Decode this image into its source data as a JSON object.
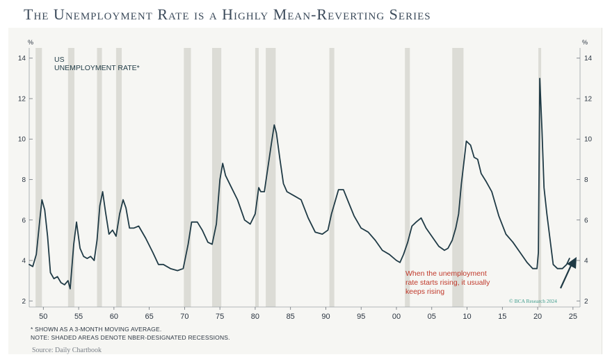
{
  "page_title": "The Unemployment Rate is a Highly Mean-Reverting Series",
  "source": "Source: Daily Chartbook",
  "footnotes": {
    "line1": "* SHOWN AS A 3-MONTH MOVING AVERAGE.",
    "line2": "NOTE: SHADED AREAS DENOTE NBER-DESIGNATED RECESSIONS."
  },
  "colors": {
    "line": "#1f3a45",
    "recession_shade": "#dcdcd6",
    "annotation": "#c0392b",
    "watermark": "#3a9a8a",
    "arrow": "#1f3a45"
  },
  "icons": {
    "arrow": "arrow-up-right-icon"
  },
  "chart_data": {
    "type": "line",
    "title": "US",
    "subtitle": "UNEMPLOYMENT RATE*",
    "y_unit_left": "%",
    "y_unit_right": "%",
    "ylim": [
      1.7,
      14.3
    ],
    "xlim": [
      1948.0,
      2026.0
    ],
    "y_ticks": [
      2,
      4,
      6,
      8,
      10,
      12,
      14
    ],
    "x_ticks": [
      {
        "value": 1950,
        "label": "50"
      },
      {
        "value": 1955,
        "label": "55"
      },
      {
        "value": 1960,
        "label": "60"
      },
      {
        "value": 1965,
        "label": "65"
      },
      {
        "value": 1970,
        "label": "70"
      },
      {
        "value": 1975,
        "label": "75"
      },
      {
        "value": 1980,
        "label": "80"
      },
      {
        "value": 1985,
        "label": "85"
      },
      {
        "value": 1990,
        "label": "90"
      },
      {
        "value": 1995,
        "label": "95"
      },
      {
        "value": 2000,
        "label": "00"
      },
      {
        "value": 2005,
        "label": "05"
      },
      {
        "value": 2010,
        "label": "10"
      },
      {
        "value": 2015,
        "label": "15"
      },
      {
        "value": 2020,
        "label": "20"
      },
      {
        "value": 2025,
        "label": "25"
      }
    ],
    "recessions": [
      [
        1948.9,
        1949.8
      ],
      [
        1953.5,
        1954.4
      ],
      [
        1957.6,
        1958.3
      ],
      [
        1960.3,
        1961.1
      ],
      [
        1969.9,
        1970.9
      ],
      [
        1973.9,
        1975.2
      ],
      [
        1980.0,
        1980.5
      ],
      [
        1981.5,
        1982.9
      ],
      [
        1990.5,
        1991.2
      ],
      [
        2001.2,
        2001.9
      ],
      [
        2007.9,
        2009.5
      ],
      [
        2020.1,
        2020.4
      ]
    ],
    "series": [
      {
        "x": [
          1948.0,
          1948.5,
          1949.0,
          1949.5,
          1949.8,
          1950.2,
          1950.6,
          1951.0,
          1951.5,
          1952.0,
          1952.5,
          1953.0,
          1953.5,
          1953.8,
          1954.3,
          1954.7,
          1955.2,
          1955.7,
          1956.2,
          1956.7,
          1957.2,
          1957.6,
          1958.0,
          1958.4,
          1958.8,
          1959.3,
          1959.8,
          1960.3,
          1960.8,
          1961.3,
          1961.7,
          1962.2,
          1962.8,
          1963.5,
          1964.5,
          1965.5,
          1966.3,
          1967.0,
          1968.0,
          1969.0,
          1969.8,
          1970.5,
          1971.0,
          1971.8,
          1972.5,
          1973.3,
          1973.9,
          1974.5,
          1975.0,
          1975.4,
          1975.8,
          1976.5,
          1977.5,
          1978.5,
          1979.3,
          1980.0,
          1980.5,
          1980.8,
          1981.3,
          1981.8,
          1982.3,
          1982.7,
          1983.0,
          1983.5,
          1984.0,
          1984.5,
          1985.5,
          1986.5,
          1987.5,
          1988.5,
          1989.5,
          1990.3,
          1990.8,
          1991.3,
          1991.8,
          1992.5,
          1993.3,
          1994.0,
          1995.0,
          1996.0,
          1997.0,
          1998.0,
          1999.0,
          2000.0,
          2000.5,
          2001.0,
          2001.6,
          2002.2,
          2002.8,
          2003.5,
          2004.2,
          2005.0,
          2006.0,
          2006.8,
          2007.3,
          2007.9,
          2008.4,
          2008.8,
          2009.2,
          2009.6,
          2009.9,
          2010.5,
          2011.0,
          2011.5,
          2012.0,
          2012.7,
          2013.5,
          2014.5,
          2015.5,
          2016.5,
          2017.5,
          2018.5,
          2019.3,
          2019.9,
          2020.1,
          2020.3,
          2020.6,
          2020.9,
          2021.3,
          2021.7,
          2022.2,
          2022.8,
          2023.5,
          2024.1,
          2024.5
        ],
        "y": [
          3.8,
          3.7,
          4.3,
          6.0,
          7.0,
          6.5,
          5.2,
          3.4,
          3.1,
          3.2,
          2.9,
          2.8,
          3.0,
          2.6,
          4.8,
          5.9,
          4.6,
          4.2,
          4.1,
          4.2,
          4.0,
          5.0,
          6.7,
          7.4,
          6.4,
          5.3,
          5.5,
          5.2,
          6.3,
          7.0,
          6.6,
          5.6,
          5.6,
          5.7,
          5.1,
          4.4,
          3.8,
          3.8,
          3.6,
          3.5,
          3.6,
          4.8,
          5.9,
          5.9,
          5.5,
          4.9,
          4.8,
          5.8,
          8.0,
          8.8,
          8.2,
          7.7,
          7.0,
          6.0,
          5.8,
          6.3,
          7.6,
          7.4,
          7.4,
          8.6,
          9.8,
          10.7,
          10.3,
          9.0,
          7.8,
          7.4,
          7.2,
          7.0,
          6.1,
          5.4,
          5.3,
          5.5,
          6.3,
          6.9,
          7.5,
          7.5,
          6.8,
          6.2,
          5.6,
          5.4,
          5.0,
          4.5,
          4.3,
          4.0,
          3.9,
          4.3,
          4.9,
          5.7,
          5.9,
          6.1,
          5.6,
          5.2,
          4.7,
          4.5,
          4.6,
          5.0,
          5.6,
          6.3,
          7.8,
          9.0,
          9.9,
          9.7,
          9.1,
          9.0,
          8.3,
          7.9,
          7.4,
          6.2,
          5.3,
          4.9,
          4.4,
          3.9,
          3.6,
          3.6,
          4.4,
          13.0,
          10.5,
          7.6,
          6.3,
          5.2,
          3.8,
          3.6,
          3.6,
          3.8,
          4.1
        ],
        "color": "#1f3a45"
      }
    ],
    "annotations": [
      {
        "line1": "When the unemployment",
        "line2": "rate starts rising, it usually",
        "line3": "keeps rising"
      }
    ],
    "watermark": "© BCA Research 2024",
    "grid": false,
    "legend": "none"
  }
}
